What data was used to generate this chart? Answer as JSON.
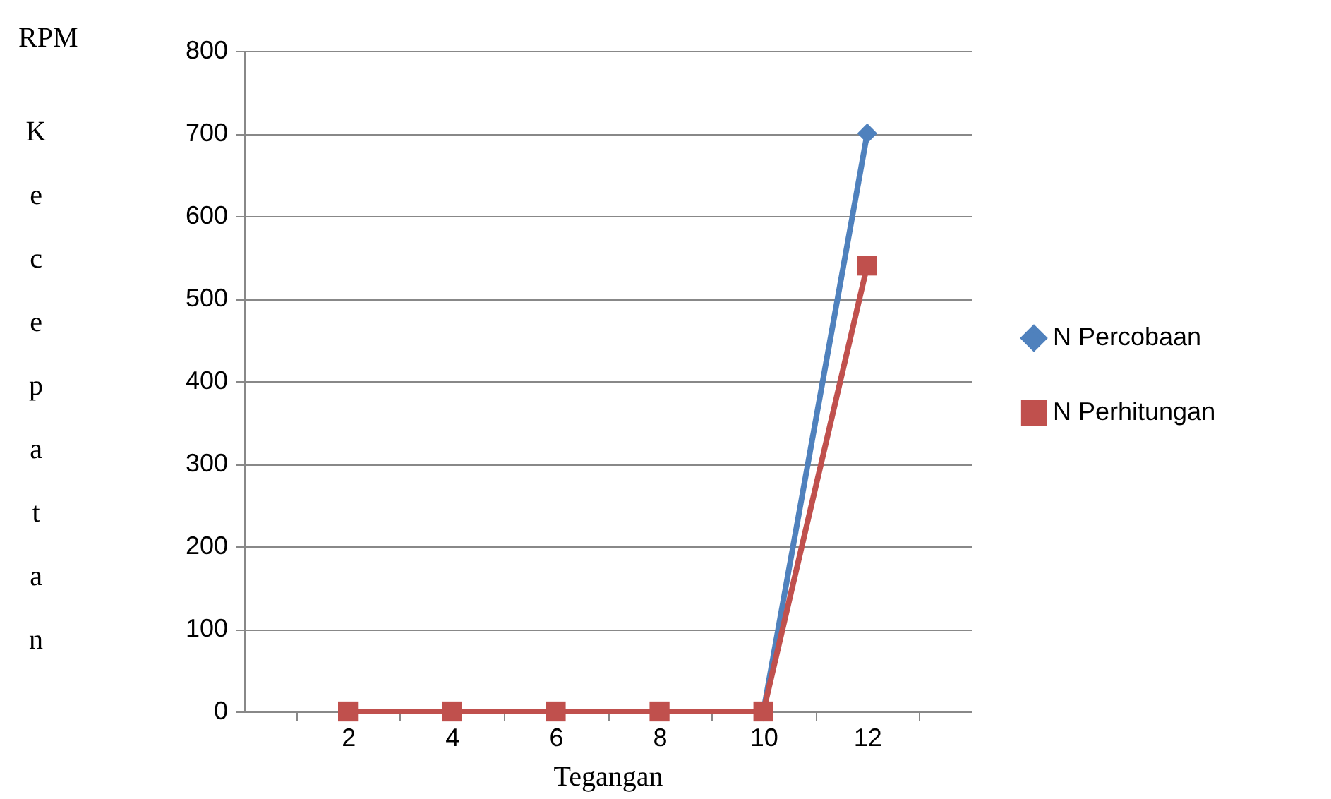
{
  "chart_data": {
    "type": "line",
    "xlabel": "Tegangan",
    "ylabel": "Kecepatan",
    "annotations": [
      "RPM"
    ],
    "categories": [
      "2",
      "4",
      "6",
      "8",
      "10",
      "12"
    ],
    "series": [
      {
        "name": "N Percobaan",
        "color": "#4f81bd",
        "marker": "diamond",
        "values": [
          null,
          null,
          null,
          null,
          0,
          700
        ]
      },
      {
        "name": "N Perhitungan",
        "color": "#c0504d",
        "marker": "square",
        "values": [
          0,
          0,
          0,
          0,
          0,
          540
        ]
      }
    ],
    "ylim": [
      0,
      800
    ],
    "yticks": [
      0,
      100,
      200,
      300,
      400,
      500,
      600,
      700,
      800
    ],
    "grid": "y",
    "legend": "right",
    "line_style": "solid"
  }
}
